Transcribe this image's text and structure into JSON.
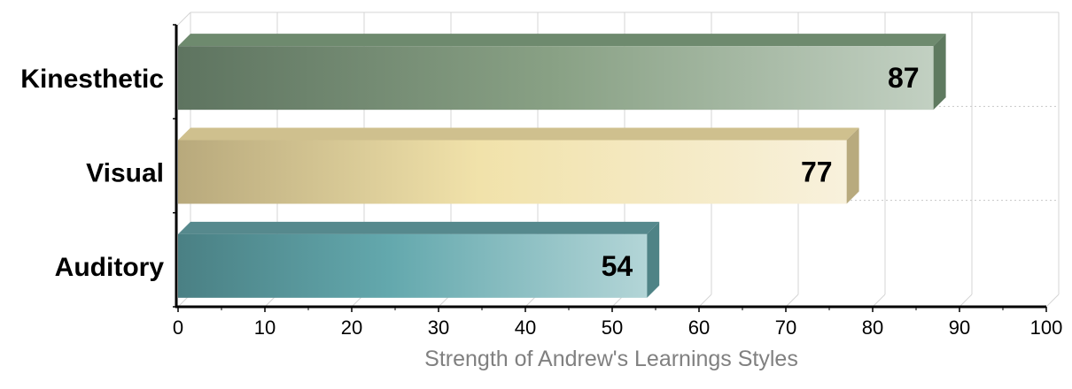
{
  "chart_data": {
    "type": "bar",
    "orientation": "horizontal",
    "categories": [
      "Kinesthetic",
      "Visual",
      "Auditory"
    ],
    "values": [
      87,
      77,
      54
    ],
    "title": "",
    "xlabel": "Strength of Andrew's Learnings Styles",
    "ylabel": "",
    "xlim": [
      0,
      100
    ],
    "ticks": [
      "0",
      "10",
      "20",
      "30",
      "40",
      "50",
      "60",
      "70",
      "80",
      "90",
      "100"
    ],
    "grid": true,
    "style": "3d",
    "colors": {
      "Kinesthetic": {
        "dark": "#5e7460",
        "light": "#c2d0c2",
        "top": "#6e8a6e",
        "side": "#5f7a60"
      },
      "Visual": {
        "dark": "#b8a97c",
        "light": "#f8f1dc",
        "top": "#cfc08e",
        "side": "#b8aa7e"
      },
      "Auditory": {
        "dark": "#4a8084",
        "light": "#b3d5d7",
        "top": "#56898d",
        "side": "#4f8386"
      }
    }
  }
}
